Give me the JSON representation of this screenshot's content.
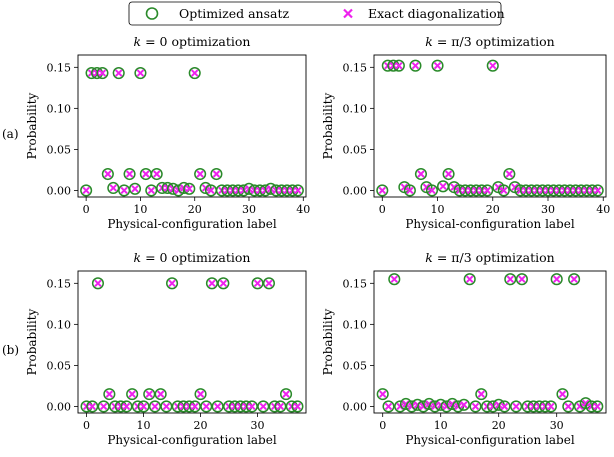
{
  "legend": {
    "ansatz_label": "Optimized ansatz",
    "exact_label": "Exact diagonalization"
  },
  "colors": {
    "ansatz": "#2a8a2a",
    "exact": "#ee22ee"
  },
  "row_labels": [
    "(a)",
    "(b)"
  ],
  "chart_data": [
    {
      "type": "scatter",
      "row_label": "(a)",
      "title_k": "0",
      "title_suffix": "optimization",
      "xlabel": "Physical-configuration label",
      "ylabel": "Probability",
      "xlim": [
        -1.5,
        40.5
      ],
      "ylim": [
        -0.008,
        0.165
      ],
      "xticks": [
        0,
        10,
        20,
        30,
        40
      ],
      "yticks": [
        "0.00",
        "0.05",
        "0.10",
        "0.15"
      ],
      "ytick_values": [
        0.0,
        0.05,
        0.1,
        0.15
      ],
      "x": [
        0,
        1,
        2,
        3,
        4,
        5,
        6,
        7,
        8,
        9,
        10,
        11,
        12,
        13,
        14,
        15,
        16,
        17,
        18,
        19,
        20,
        21,
        22,
        23,
        24,
        25,
        26,
        27,
        28,
        29,
        30,
        31,
        32,
        33,
        34,
        35,
        36,
        37,
        38,
        39
      ],
      "y": [
        0.0,
        0.143,
        0.143,
        0.143,
        0.02,
        0.003,
        0.143,
        0.0,
        0.02,
        0.002,
        0.143,
        0.02,
        0.0,
        0.02,
        0.003,
        0.003,
        0.002,
        0.0,
        0.003,
        0.002,
        0.143,
        0.02,
        0.003,
        0.0,
        0.02,
        0.0,
        0.0,
        0.0,
        0.0,
        0.0,
        0.002,
        0.0,
        0.0,
        0.0,
        0.002,
        0.0,
        0.0,
        0.0,
        0.0,
        0.0
      ]
    },
    {
      "type": "scatter",
      "row_label": "(a)",
      "title_k": "π/3",
      "title_suffix": "optimization",
      "xlabel": "Physical-configuration label",
      "ylabel": "Probability",
      "xlim": [
        -1.5,
        40.5
      ],
      "ylim": [
        -0.008,
        0.165
      ],
      "xticks": [
        0,
        10,
        20,
        30,
        40
      ],
      "yticks": [
        "0.00",
        "0.05",
        "0.10",
        "0.15"
      ],
      "ytick_values": [
        0.0,
        0.05,
        0.1,
        0.15
      ],
      "x": [
        0,
        1,
        2,
        3,
        4,
        5,
        6,
        7,
        8,
        9,
        10,
        11,
        12,
        13,
        14,
        15,
        16,
        17,
        18,
        19,
        20,
        21,
        22,
        23,
        24,
        25,
        26,
        27,
        28,
        29,
        30,
        31,
        32,
        33,
        34,
        35,
        36,
        37,
        38,
        39
      ],
      "y": [
        0.0,
        0.152,
        0.152,
        0.152,
        0.004,
        0.0,
        0.152,
        0.02,
        0.004,
        0.0,
        0.152,
        0.005,
        0.02,
        0.004,
        0.0,
        0.0,
        0.0,
        0.0,
        0.0,
        0.0,
        0.152,
        0.004,
        0.0,
        0.02,
        0.004,
        0.0,
        0.0,
        0.0,
        0.0,
        0.0,
        0.0,
        0.0,
        0.0,
        0.0,
        0.0,
        0.0,
        0.0,
        0.0,
        0.0,
        0.0
      ]
    },
    {
      "type": "scatter",
      "row_label": "(b)",
      "title_k": "0",
      "title_suffix": "optimization",
      "xlabel": "Physical-configuration label",
      "ylabel": "Probability",
      "xlim": [
        -1.5,
        38.5
      ],
      "ylim": [
        -0.008,
        0.165
      ],
      "xticks": [
        0,
        10,
        20,
        30
      ],
      "yticks": [
        "0.00",
        "0.05",
        "0.10",
        "0.15"
      ],
      "ytick_values": [
        0.0,
        0.05,
        0.1,
        0.15
      ],
      "x": [
        0,
        1,
        2,
        3,
        4,
        5,
        6,
        7,
        8,
        9,
        10,
        11,
        12,
        13,
        14,
        15,
        16,
        17,
        18,
        19,
        20,
        21,
        22,
        23,
        24,
        25,
        26,
        27,
        28,
        29,
        30,
        31,
        32,
        33,
        34,
        35,
        36,
        37
      ],
      "y": [
        0.0,
        0.0,
        0.15,
        0.0,
        0.015,
        0.0,
        0.0,
        0.0,
        0.015,
        0.0,
        0.0,
        0.015,
        0.0,
        0.015,
        0.0,
        0.15,
        0.0,
        0.0,
        0.0,
        0.0,
        0.015,
        0.0,
        0.15,
        0.0,
        0.15,
        0.0,
        0.0,
        0.0,
        0.0,
        0.0,
        0.15,
        0.0,
        0.15,
        0.0,
        0.0,
        0.015,
        0.0,
        0.0
      ]
    },
    {
      "type": "scatter",
      "row_label": "(b)",
      "title_k": "π/3",
      "title_suffix": "optimization",
      "xlabel": "Physical-configuration label",
      "ylabel": "Probability",
      "xlim": [
        -1.5,
        38.5
      ],
      "ylim": [
        -0.008,
        0.165
      ],
      "xticks": [
        0,
        10,
        20,
        30
      ],
      "yticks": [
        "0.00",
        "0.05",
        "0.10",
        "0.15"
      ],
      "ytick_values": [
        0.0,
        0.05,
        0.1,
        0.15
      ],
      "x": [
        0,
        1,
        2,
        3,
        4,
        5,
        6,
        7,
        8,
        9,
        10,
        11,
        12,
        13,
        14,
        15,
        16,
        17,
        18,
        19,
        20,
        21,
        22,
        23,
        24,
        25,
        26,
        27,
        28,
        29,
        30,
        31,
        32,
        33,
        34,
        35,
        36,
        37
      ],
      "y": [
        0.015,
        0.0,
        0.155,
        0.0,
        0.003,
        0.0,
        0.002,
        0.0,
        0.003,
        0.0,
        0.002,
        0.0,
        0.003,
        0.0,
        0.002,
        0.155,
        0.0,
        0.015,
        0.0,
        0.0,
        0.002,
        0.0,
        0.155,
        0.0,
        0.155,
        0.0,
        0.0,
        0.0,
        0.0,
        0.0,
        0.155,
        0.015,
        0.0,
        0.155,
        0.0,
        0.004,
        0.0,
        0.0
      ]
    }
  ]
}
